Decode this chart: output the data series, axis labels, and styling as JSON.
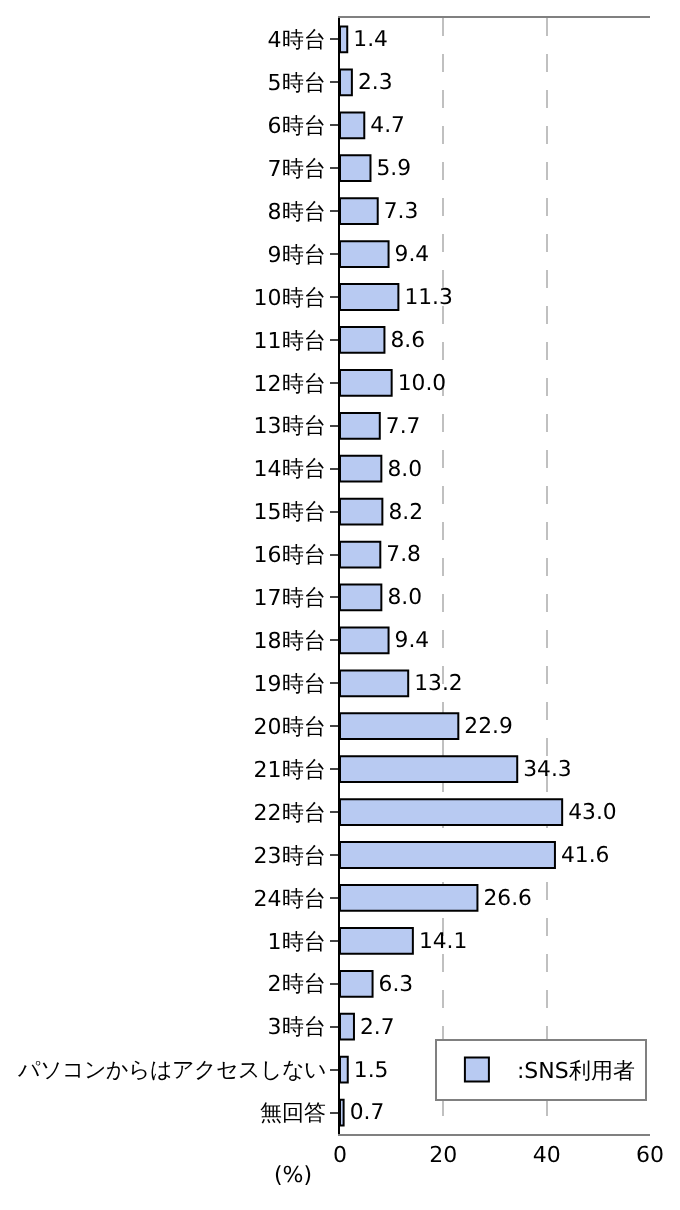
{
  "chart_data": {
    "type": "bar",
    "orientation": "horizontal",
    "xlabel": "(%)",
    "categories": [
      "4時台",
      "5時台",
      "6時台",
      "7時台",
      "8時台",
      "9時台",
      "10時台",
      "11時台",
      "12時台",
      "13時台",
      "14時台",
      "15時台",
      "16時台",
      "17時台",
      "18時台",
      "19時台",
      "20時台",
      "21時台",
      "22時台",
      "23時台",
      "24時台",
      "1時台",
      "2時台",
      "3時台",
      "パソコンからはアクセスしない",
      "無回答"
    ],
    "series": [
      {
        "name": ":SNS利用者",
        "color": "#b8caf2",
        "values": [
          1.4,
          2.3,
          4.7,
          5.9,
          7.3,
          9.4,
          11.3,
          8.6,
          10.0,
          7.7,
          8.0,
          8.2,
          7.8,
          8.0,
          9.4,
          13.2,
          22.9,
          34.3,
          43.0,
          41.6,
          26.6,
          14.1,
          6.3,
          2.7,
          1.5,
          0.7
        ],
        "value_labels": [
          "1.4",
          "2.3",
          "4.7",
          "5.9",
          "7.3",
          "9.4",
          "11.3",
          "8.6",
          "10.0",
          "7.7",
          "8.0",
          "8.2",
          "7.8",
          "8.0",
          "9.4",
          "13.2",
          "22.9",
          "34.3",
          "43.0",
          "41.6",
          "26.6",
          "14.1",
          "6.3",
          "2.7",
          "1.5",
          "0.7"
        ]
      }
    ],
    "xlim": [
      0,
      60
    ],
    "xticks": [
      0,
      20,
      40,
      60
    ],
    "grid": "x",
    "legend": "bottom right"
  }
}
